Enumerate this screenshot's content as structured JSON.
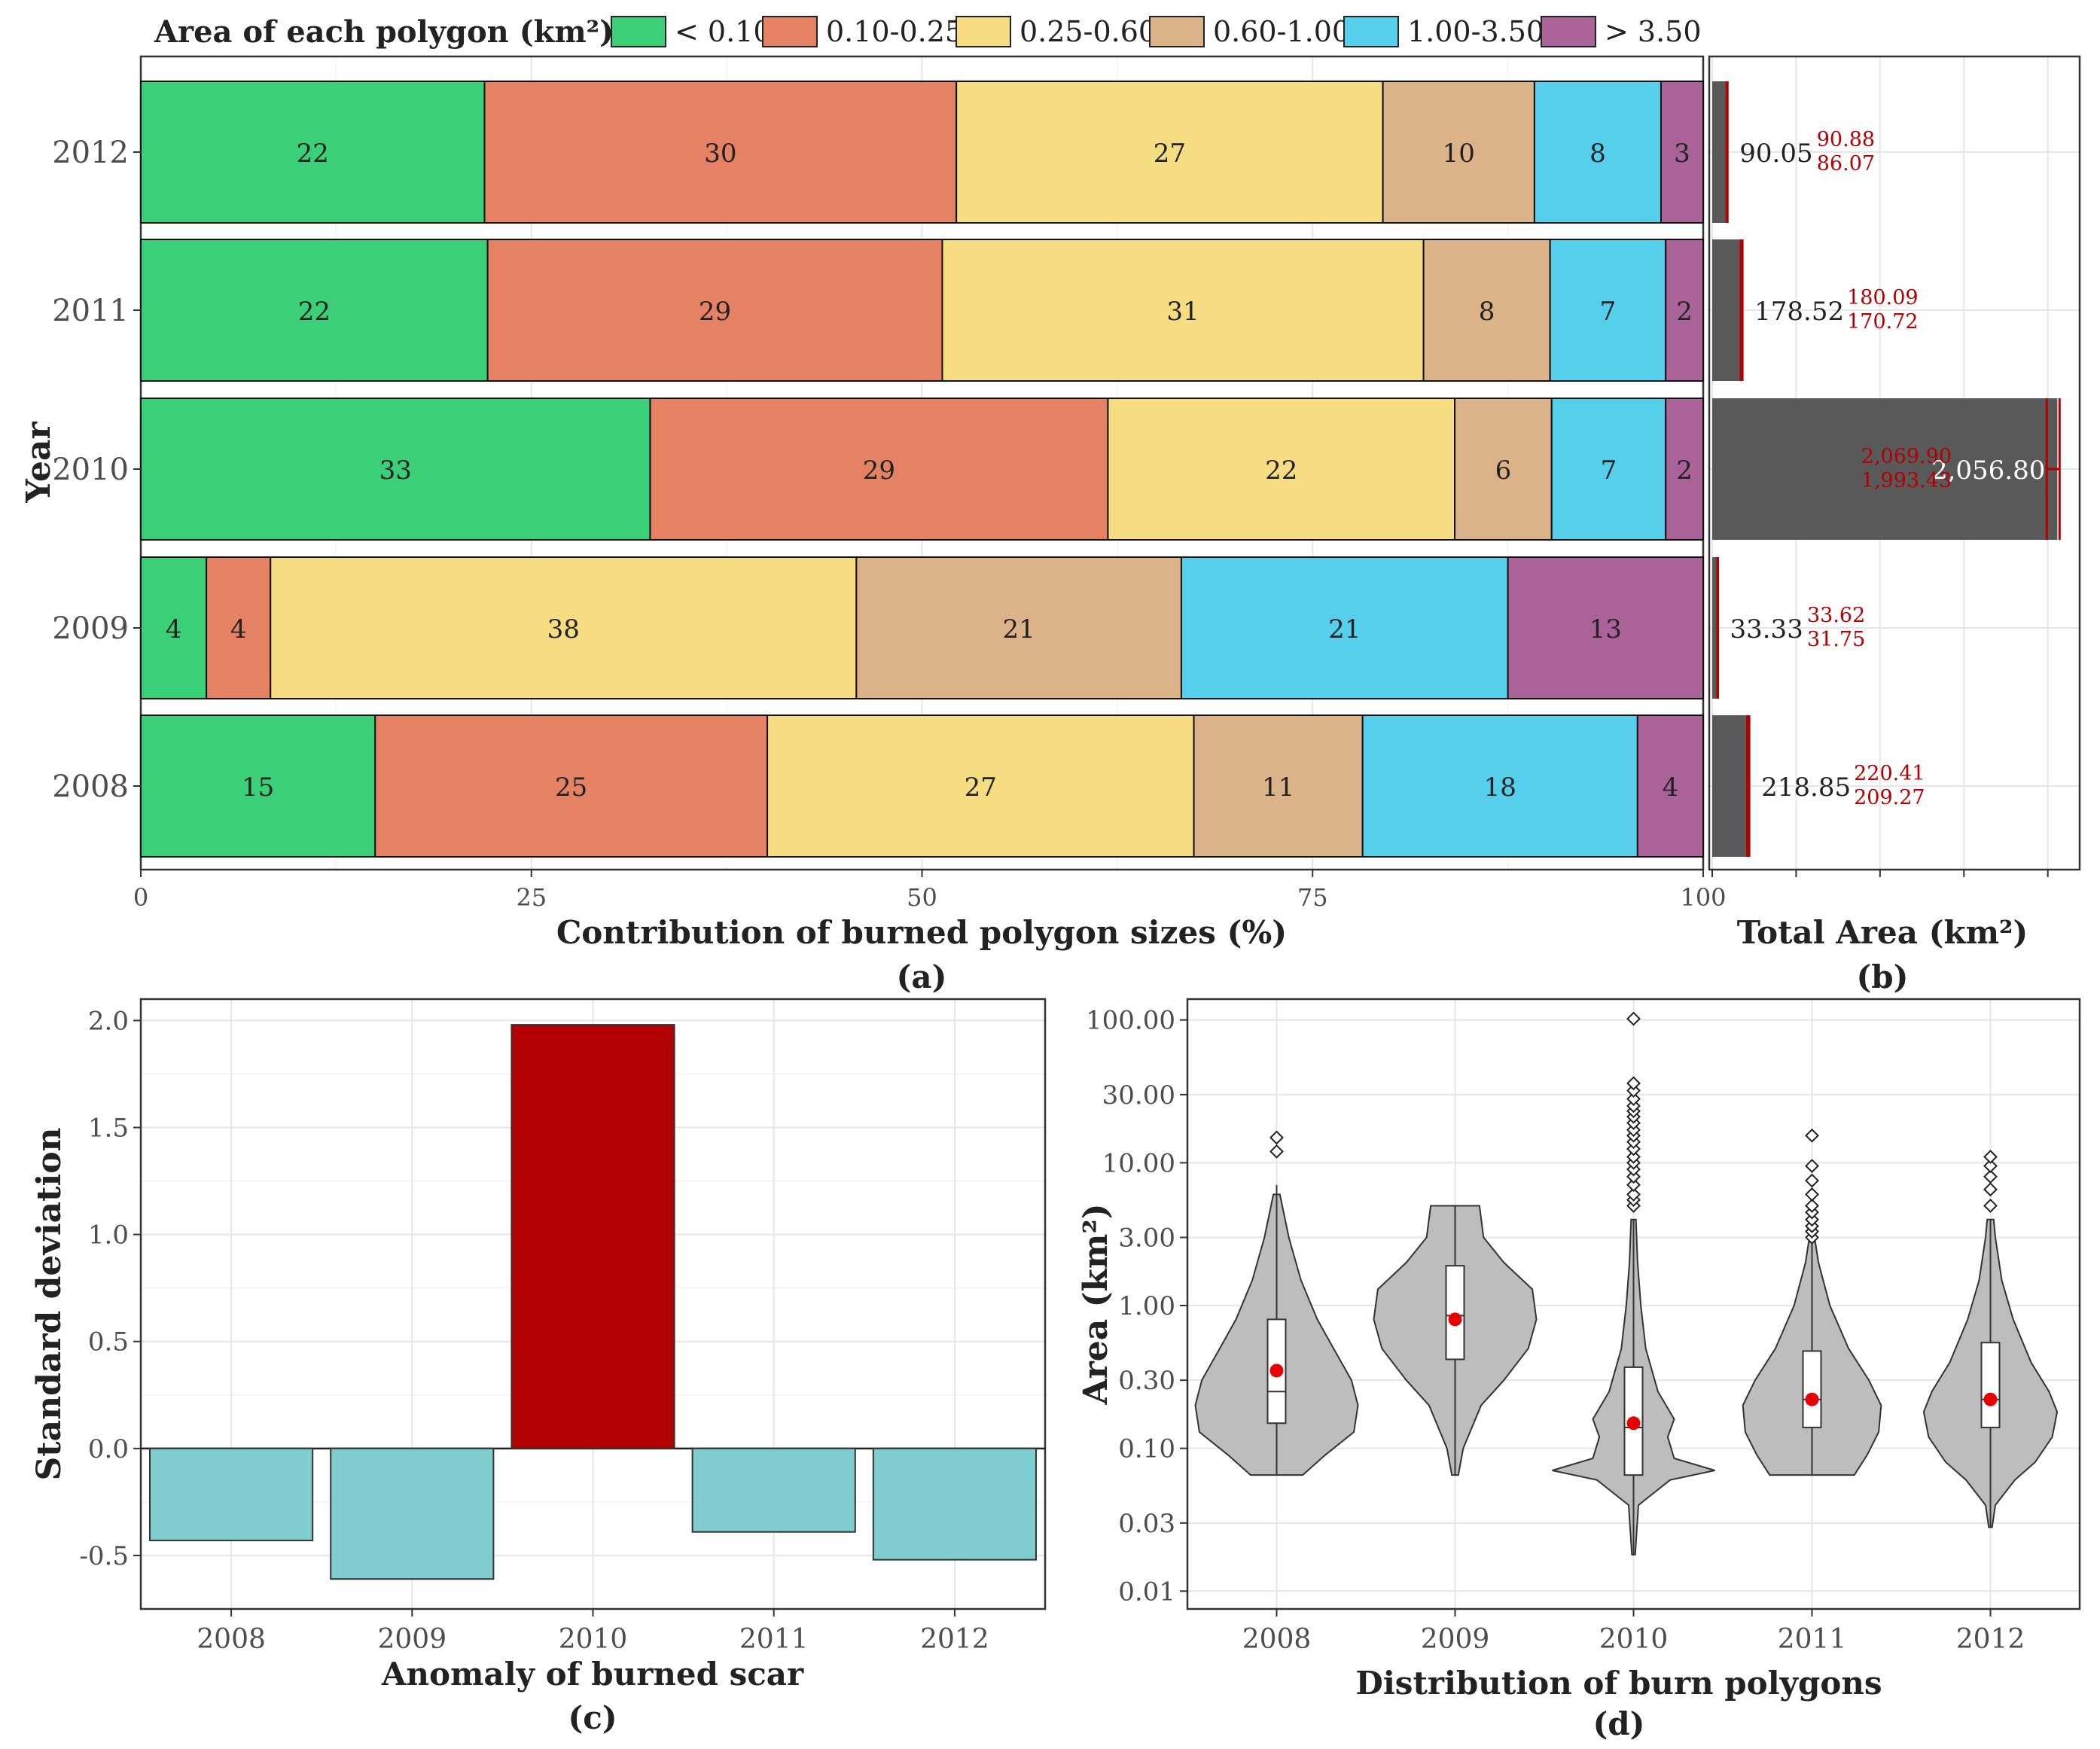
{
  "legend": {
    "title": "Area of each polygon (km²):",
    "items": [
      {
        "label": "< 0.10",
        "color": "#3bcf77"
      },
      {
        "label": "0.10-0.25",
        "color": "#e48263"
      },
      {
        "label": "0.25-0.60",
        "color": "#f6dd82"
      },
      {
        "label": "0.60-1.00",
        "color": "#dcb388"
      },
      {
        "label": "1.00-3.50",
        "color": "#55cfeb"
      },
      {
        "label": "> 3.50",
        "color": "#a96399"
      }
    ]
  },
  "chart_data": [
    {
      "id": "a",
      "type": "bar",
      "orientation": "horizontal-stacked",
      "panel_label": "(a)",
      "xlabel": "Contribution of burned polygon sizes (%)",
      "ylabel": "Year",
      "xlim": [
        0,
        100
      ],
      "xticks": [
        "0",
        "25",
        "50",
        "75",
        "100"
      ],
      "categories": [
        "2012",
        "2011",
        "2010",
        "2009",
        "2008"
      ],
      "series": [
        {
          "name": "< 0.10",
          "values": [
            22,
            22,
            33,
            4,
            15
          ]
        },
        {
          "name": "0.10-0.25",
          "values": [
            30,
            29,
            29,
            4,
            25
          ]
        },
        {
          "name": "0.25-0.60",
          "values": [
            27,
            31,
            22,
            38,
            27
          ]
        },
        {
          "name": "0.60-1.00",
          "values": [
            10,
            8,
            6,
            21,
            11
          ]
        },
        {
          "name": "1.00-3.50",
          "values": [
            8,
            7,
            7,
            21,
            18
          ]
        },
        {
          "name": "> 3.50",
          "values": [
            3,
            2,
            2,
            13,
            4
          ]
        }
      ],
      "bounds": [
        [
          0,
          22,
          52.2,
          79.5,
          89.2,
          97.3,
          100
        ],
        [
          0,
          22.2,
          51.3,
          82.1,
          90.2,
          97.6,
          100
        ],
        [
          0,
          32.6,
          61.9,
          84.1,
          90.3,
          97.6,
          100
        ],
        [
          0,
          4.2,
          8.3,
          45.8,
          66.6,
          87.5,
          100
        ],
        [
          0,
          15.0,
          40.1,
          67.4,
          78.2,
          95.8,
          100
        ]
      ]
    },
    {
      "id": "b",
      "type": "bar",
      "orientation": "horizontal",
      "panel_label": "(b)",
      "xlabel": "Total Area (km²)",
      "xlim": [
        0,
        2100
      ],
      "categories": [
        "2012",
        "2011",
        "2010",
        "2009",
        "2008"
      ],
      "values": [
        90.05,
        178.52,
        2056.8,
        33.33,
        218.85
      ],
      "value_labels": [
        "90.05",
        "178.52",
        "2,056.80",
        "33.33",
        "218.85"
      ],
      "upper": [
        90.88,
        180.09,
        2069.9,
        33.62,
        220.41
      ],
      "lower": [
        86.07,
        170.72,
        1993.43,
        31.75,
        209.27
      ],
      "upper_labels": [
        "90.88",
        "180.09",
        "2,069.90",
        "33.62",
        "220.41"
      ],
      "lower_labels": [
        "86.07",
        "170.72",
        "1,993.43",
        "31.75",
        "209.27"
      ],
      "bar_color": "#595959",
      "ci_color": "#b30000"
    },
    {
      "id": "c",
      "type": "bar",
      "panel_label": "(c)",
      "xlabel": "Anomaly of burned scar",
      "ylabel": "Standard deviation",
      "ylim": [
        -0.75,
        2.1
      ],
      "yticks": [
        -0.5,
        0.0,
        0.5,
        1.0,
        1.5,
        2.0
      ],
      "ytick_labels": [
        "-0.5",
        "0.0",
        "0.5",
        "1.0",
        "1.5",
        "2.0"
      ],
      "categories": [
        "2008",
        "2009",
        "2010",
        "2011",
        "2012"
      ],
      "values": [
        -0.43,
        -0.61,
        1.98,
        -0.39,
        -0.52
      ],
      "colors": [
        "#7fcdce",
        "#7fcdce",
        "#b30000",
        "#7fcdce",
        "#7fcdce"
      ]
    },
    {
      "id": "d",
      "type": "violin",
      "panel_label": "(d)",
      "xlabel": "Distribution of burn polygons",
      "ylabel": "Area (km²)",
      "yscale": "log",
      "ylim": [
        0.0075,
        140
      ],
      "yticks": [
        0.01,
        0.03,
        0.1,
        0.3,
        1.0,
        3.0,
        10.0,
        30.0,
        100.0
      ],
      "ytick_labels": [
        "0.01",
        "0.03",
        "0.10",
        "0.30",
        "1.00",
        "3.00",
        "10.00",
        "30.00",
        "100.00"
      ],
      "categories": [
        "2008",
        "2009",
        "2010",
        "2011",
        "2012"
      ],
      "violins": [
        {
          "min": 0.065,
          "max": 7,
          "q1": 0.15,
          "median": 0.25,
          "q3": 0.8,
          "mean": 0.35,
          "profile": [
            [
              0.065,
              0.32
            ],
            [
              0.09,
              0.6
            ],
            [
              0.13,
              0.95
            ],
            [
              0.2,
              1.0
            ],
            [
              0.3,
              0.92
            ],
            [
              0.5,
              0.7
            ],
            [
              0.8,
              0.5
            ],
            [
              1.5,
              0.3
            ],
            [
              3,
              0.15
            ],
            [
              6,
              0.04
            ]
          ],
          "outliers": [
            12,
            15
          ]
        },
        {
          "min": 0.065,
          "max": 5,
          "q1": 0.42,
          "median": 0.85,
          "q3": 1.9,
          "mean": 0.8,
          "profile": [
            [
              0.065,
              0.04
            ],
            [
              0.1,
              0.1
            ],
            [
              0.2,
              0.32
            ],
            [
              0.3,
              0.6
            ],
            [
              0.5,
              0.9
            ],
            [
              0.8,
              1.0
            ],
            [
              1.3,
              0.95
            ],
            [
              2.0,
              0.6
            ],
            [
              3.0,
              0.35
            ],
            [
              5.0,
              0.3
            ]
          ],
          "outliers": []
        },
        {
          "min": 0.018,
          "max": 4,
          "q1": 0.065,
          "median": 0.14,
          "q3": 0.37,
          "mean": 0.15,
          "profile": [
            [
              0.018,
              0.02
            ],
            [
              0.04,
              0.06
            ],
            [
              0.06,
              0.45
            ],
            [
              0.07,
              1.0
            ],
            [
              0.085,
              0.5
            ],
            [
              0.12,
              0.42
            ],
            [
              0.16,
              0.5
            ],
            [
              0.25,
              0.3
            ],
            [
              0.5,
              0.15
            ],
            [
              1,
              0.09
            ],
            [
              2,
              0.05
            ],
            [
              4,
              0.03
            ]
          ],
          "outliers": [
            5,
            5.5,
            6,
            7,
            8,
            9,
            10,
            11,
            12.5,
            14,
            15.5,
            17,
            19,
            21,
            23,
            25,
            28,
            32,
            36,
            102
          ]
        },
        {
          "min": 0.065,
          "max": 2.8,
          "q1": 0.14,
          "median": 0.22,
          "q3": 0.48,
          "mean": 0.22,
          "profile": [
            [
              0.065,
              0.52
            ],
            [
              0.09,
              0.68
            ],
            [
              0.13,
              0.82
            ],
            [
              0.2,
              0.85
            ],
            [
              0.3,
              0.7
            ],
            [
              0.5,
              0.45
            ],
            [
              1,
              0.22
            ],
            [
              2,
              0.08
            ],
            [
              2.8,
              0.04
            ]
          ],
          "outliers": [
            3,
            3.3,
            3.6,
            4,
            4.5,
            5,
            6,
            7.5,
            9.5,
            15.5
          ]
        },
        {
          "min": 0.028,
          "max": 4,
          "q1": 0.14,
          "median": 0.22,
          "q3": 0.55,
          "mean": 0.22,
          "profile": [
            [
              0.028,
              0.02
            ],
            [
              0.04,
              0.06
            ],
            [
              0.06,
              0.3
            ],
            [
              0.08,
              0.55
            ],
            [
              0.12,
              0.76
            ],
            [
              0.18,
              0.82
            ],
            [
              0.25,
              0.72
            ],
            [
              0.4,
              0.5
            ],
            [
              0.8,
              0.28
            ],
            [
              1.5,
              0.14
            ],
            [
              3,
              0.06
            ],
            [
              4,
              0.04
            ]
          ],
          "outliers": [
            5,
            6.5,
            8,
            9.5,
            11
          ]
        }
      ]
    }
  ]
}
